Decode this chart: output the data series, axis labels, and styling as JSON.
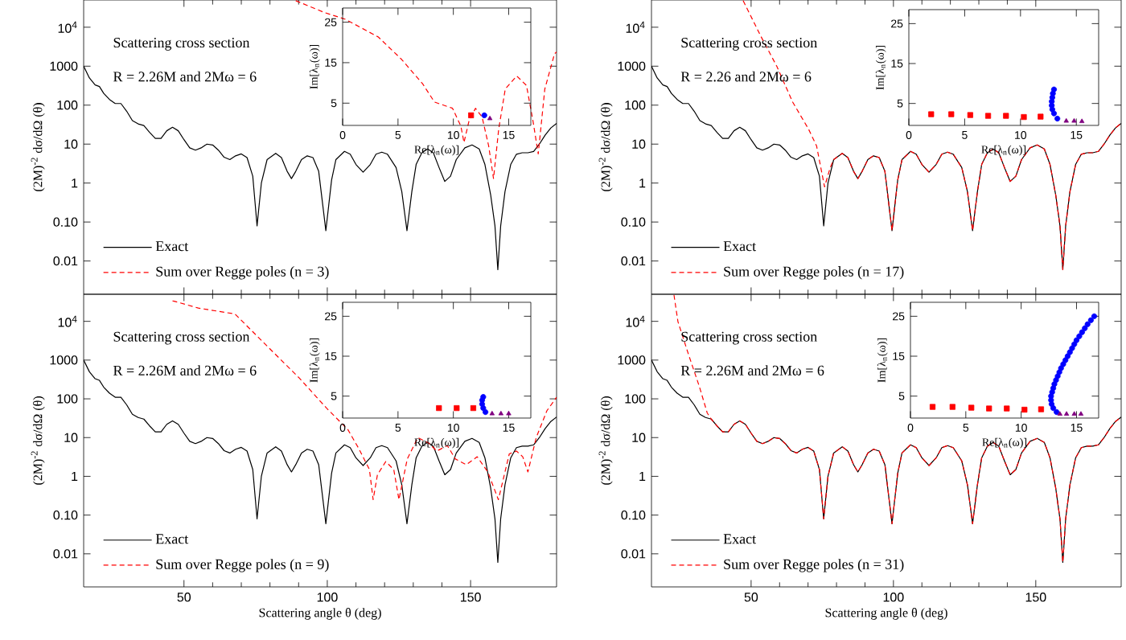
{
  "chart_data": [
    {
      "type": "line",
      "ylabel": "(2M)$^{-2}$ dσ/dΩ (θ)",
      "annotations": [
        "Scattering cross section",
        "R = 2.26M and 2Mω = 6"
      ],
      "xlim": [
        15,
        180
      ],
      "ylim": [
        0.0014,
        50000
      ],
      "xticks": [
        50,
        100,
        150
      ],
      "yticks": [
        {
          "value": 0.01,
          "label": "0.01"
        },
        {
          "value": 0.1,
          "label": "0.10"
        },
        1,
        10,
        100,
        1000,
        {
          "value": 10000,
          "label": "10$^{4}$"
        }
      ],
      "log": true,
      "legend": "bottom left",
      "tick_labels": "y",
      "series": [
        {
          "name": "Exact",
          "color": "#000000",
          "line_style": "solid",
          "x": [
            15,
            17,
            19,
            20.5,
            22,
            24,
            26,
            28,
            30,
            32,
            34,
            36,
            38,
            40,
            42,
            44,
            46,
            48,
            50,
            52,
            54,
            56,
            58,
            60,
            62,
            64,
            66,
            68,
            70,
            72,
            74,
            75.5,
            77,
            79,
            82,
            84,
            86,
            87.5,
            89,
            91,
            93,
            95,
            97,
            99.5,
            101.5,
            103,
            106,
            108,
            110,
            112.5,
            115,
            117,
            119,
            121,
            124,
            126,
            127.8,
            129.5,
            131,
            133,
            135,
            137,
            139,
            141,
            143,
            145,
            148,
            150.5,
            153,
            155,
            157,
            158.5,
            159.5,
            160.5,
            162,
            164,
            166,
            168,
            170,
            172,
            174,
            176,
            178,
            180
          ],
          "values": [
            1000,
            500,
            330,
            300,
            200,
            140,
            110,
            110,
            70,
            40,
            33,
            30,
            20,
            14,
            14,
            22,
            27,
            22,
            13,
            8,
            7,
            8,
            10,
            9.5,
            7,
            4.6,
            4,
            5,
            5.6,
            4.5,
            1.5,
            0.08,
            1,
            4,
            5.8,
            4.5,
            2,
            1.3,
            2,
            4,
            5,
            4.5,
            2,
            0.06,
            1.2,
            4,
            6.5,
            5.5,
            3,
            1.9,
            3,
            5.5,
            6.2,
            5.5,
            2.5,
            0.6,
            0.06,
            0.6,
            3,
            6,
            7.5,
            6,
            2.5,
            1.1,
            1.5,
            4,
            8,
            9.5,
            7.5,
            3,
            0.5,
            0.08,
            0.006,
            0.08,
            0.6,
            3,
            5.5,
            6,
            6,
            6.5,
            10,
            17,
            26,
            34
          ]
        },
        {
          "name": "Sum over Regge poles (n = 3)",
          "color": "#ff0000",
          "line_style": "dashed",
          "x": [
            89,
            98.9,
            106.3,
            117.8,
            125.9,
            133.3,
            137.4,
            143.7,
            146.6,
            147.7,
            149.4,
            151.7,
            154,
            156.3,
            158,
            159.8,
            162.1,
            166.1,
            169.5,
            171.8,
            173.6,
            175.9,
            179.3,
            180
          ],
          "values": [
            48000,
            24000,
            16000,
            5600,
            1500,
            350,
            120,
            83,
            29,
            11,
            38,
            83,
            50,
            9,
            1.3,
            24,
            260,
            560,
            320,
            38,
            5.6,
            260,
            2100,
            2300
          ]
        }
      ]
    },
    {
      "type": "scatter",
      "xlabel": "Re[λ$_{n}$(ω)]",
      "ylabel": "Im[λ$_{n}$(ω)]",
      "xlim": [
        0,
        17
      ],
      "ylim": [
        -0.5,
        28.5
      ],
      "xticks": [
        0,
        5,
        10,
        15
      ],
      "yticks": [
        5,
        15,
        25
      ],
      "series": [
        {
          "color": "#ff0000",
          "marker": "square",
          "x": [
            11.6
          ],
          "values": [
            2.0
          ]
        },
        {
          "color": "#0000ff",
          "marker": "circle",
          "x": [
            12.8
          ],
          "values": [
            2.0
          ]
        },
        {
          "color": "#800080",
          "marker": "triangle",
          "x": [
            13.3
          ],
          "values": [
            1.2
          ]
        }
      ]
    },
    {
      "type": "line",
      "ylabel": "(2M)$^{-2}$ dσ/dΩ (θ)",
      "annotations": [
        "Scattering cross section",
        "R = 2.26 and 2Mω = 6"
      ],
      "xlim": [
        15,
        180
      ],
      "ylim": [
        0.0014,
        50000
      ],
      "xticks": [
        50,
        100,
        150
      ],
      "yticks": [
        {
          "value": 0.01,
          "label": "0.01"
        },
        {
          "value": 0.1,
          "label": "0.10"
        },
        1,
        10,
        100,
        1000,
        {
          "value": 10000,
          "label": "10$^{4}$"
        }
      ],
      "log": true,
      "legend": "bottom left",
      "tick_labels": "y",
      "series": [
        {
          "name": "Exact",
          "color": "#000000",
          "line_style": "solid",
          "x": [
            15,
            17,
            19,
            20.5,
            22,
            24,
            26,
            28,
            30,
            32,
            34,
            36,
            38,
            40,
            42,
            44,
            46,
            48,
            50,
            52,
            54,
            56,
            58,
            60,
            62,
            64,
            66,
            68,
            70,
            72,
            74,
            75.5,
            77,
            79,
            82,
            84,
            86,
            87.5,
            89,
            91,
            93,
            95,
            97,
            99.5,
            101.5,
            103,
            106,
            108,
            110,
            112.5,
            115,
            117,
            119,
            121,
            124,
            126,
            127.8,
            129.5,
            131,
            133,
            135,
            137,
            139,
            141,
            143,
            145,
            148,
            150.5,
            153,
            155,
            157,
            158.5,
            159.5,
            160.5,
            162,
            164,
            166,
            168,
            170,
            172,
            174,
            176,
            178,
            180
          ],
          "values": [
            1000,
            500,
            330,
            300,
            200,
            140,
            110,
            110,
            70,
            40,
            33,
            30,
            20,
            14,
            14,
            22,
            27,
            22,
            13,
            8,
            7,
            8,
            10,
            9.5,
            7,
            4.6,
            4,
            5,
            5.6,
            4.5,
            1.5,
            0.08,
            1,
            4,
            5.8,
            4.5,
            2,
            1.3,
            2,
            4,
            5,
            4.5,
            2,
            0.06,
            1.2,
            4,
            6.5,
            5.5,
            3,
            1.9,
            3,
            5.5,
            6.2,
            5.5,
            2.5,
            0.6,
            0.06,
            0.6,
            3,
            6,
            7.5,
            6,
            2.5,
            1.1,
            1.5,
            4,
            8,
            9.5,
            7.5,
            3,
            0.5,
            0.08,
            0.006,
            0.08,
            0.6,
            3,
            5.5,
            6,
            6,
            6.5,
            10,
            17,
            26,
            34
          ]
        },
        {
          "name": "Sum over Regge poles (n = 17)",
          "color": "#ff0000",
          "line_style": "dashed",
          "x": [
            47.2,
            53.4,
            59,
            64.6,
            70.2,
            73,
            75.8,
            77.8,
            79,
            82,
            84,
            86,
            87.5,
            89,
            91,
            93,
            95,
            97,
            99.5,
            101.5,
            103,
            106,
            108,
            110,
            112.5,
            115,
            117,
            119,
            121,
            124,
            126,
            127.8,
            129.5,
            131,
            133,
            135,
            137,
            139,
            141,
            143,
            145,
            148,
            150.5,
            153,
            155,
            157,
            158.5,
            159.5,
            160.5,
            162,
            164,
            166,
            168,
            170,
            172,
            174,
            176,
            178,
            180
          ],
          "values": [
            48000,
            5900,
            1000,
            120,
            24,
            9,
            0.8,
            2.5,
            4,
            5.8,
            4.5,
            2,
            1.3,
            2,
            4,
            5,
            4.5,
            2,
            0.06,
            1.2,
            4,
            6.5,
            5.5,
            3,
            1.9,
            3,
            5.5,
            6.2,
            5.5,
            2.5,
            0.6,
            0.06,
            0.6,
            3,
            6,
            7.5,
            6,
            2.5,
            1.1,
            1.5,
            4,
            8,
            9.5,
            7.5,
            3,
            0.5,
            0.08,
            0.006,
            0.08,
            0.6,
            3,
            5.5,
            6,
            6,
            6.5,
            10,
            17,
            26,
            34
          ]
        }
      ]
    },
    {
      "type": "scatter",
      "xlabel": "Re[λ$_{n}$(ω)]",
      "ylabel": "Im[λ$_{n}$(ω)]",
      "xlim": [
        0,
        17
      ],
      "ylim": [
        -0.5,
        28.5
      ],
      "xticks": [
        0,
        5,
        10,
        15
      ],
      "yticks": [
        5,
        15,
        25
      ],
      "series": [
        {
          "color": "#ff0000",
          "marker": "square",
          "x": [
            2,
            3.8,
            5.5,
            7.1,
            8.7,
            10.3,
            11.8
          ],
          "values": [
            2.3,
            2.3,
            2.1,
            1.9,
            1.9,
            1.6,
            1.7
          ]
        },
        {
          "color": "#0000ff",
          "marker": "circle",
          "x": [
            13.3,
            13.0,
            12.85,
            12.8,
            12.8,
            12.85,
            12.9,
            13.0
          ],
          "values": [
            1.2,
            2.5,
            3.5,
            4.5,
            5.5,
            6.5,
            7.5,
            8.5
          ]
        },
        {
          "color": "#800080",
          "marker": "triangle",
          "x": [
            14.1,
            14.8,
            15.5
          ],
          "values": [
            0.6,
            0.6,
            0.5
          ]
        }
      ]
    },
    {
      "type": "line",
      "xlabel": "Scattering angle θ (deg)",
      "ylabel": "(2M)$^{-2}$ dσ/dΩ (θ)",
      "annotations": [
        "Scattering cross section",
        "R = 2.26M and 2Mω = 6"
      ],
      "xlim": [
        15,
        180
      ],
      "ylim": [
        0.0014,
        50000
      ],
      "xticks": [
        50,
        100,
        150
      ],
      "yticks": [
        {
          "value": 0.01,
          "label": "0.01"
        },
        {
          "value": 0.1,
          "label": "0.10"
        },
        1,
        10,
        100,
        1000,
        {
          "value": 10000,
          "label": "10$^{4}$"
        }
      ],
      "log": true,
      "legend": "bottom left",
      "series": [
        {
          "name": "Exact",
          "color": "#000000",
          "line_style": "solid",
          "x": [
            15,
            17,
            19,
            20.5,
            22,
            24,
            26,
            28,
            30,
            32,
            34,
            36,
            38,
            40,
            42,
            44,
            46,
            48,
            50,
            52,
            54,
            56,
            58,
            60,
            62,
            64,
            66,
            68,
            70,
            72,
            74,
            75.5,
            77,
            79,
            82,
            84,
            86,
            87.5,
            89,
            91,
            93,
            95,
            97,
            99.5,
            101.5,
            103,
            106,
            108,
            110,
            112.5,
            115,
            117,
            119,
            121,
            124,
            126,
            127.8,
            129.5,
            131,
            133,
            135,
            137,
            139,
            141,
            143,
            145,
            148,
            150.5,
            153,
            155,
            157,
            158.5,
            159.5,
            160.5,
            162,
            164,
            166,
            168,
            170,
            172,
            174,
            176,
            178,
            180
          ],
          "values": [
            1000,
            500,
            330,
            300,
            200,
            140,
            110,
            110,
            70,
            40,
            33,
            30,
            20,
            14,
            14,
            22,
            27,
            22,
            13,
            8,
            7,
            8,
            10,
            9.5,
            7,
            4.6,
            4,
            5,
            5.6,
            4.5,
            1.5,
            0.08,
            1,
            4,
            5.8,
            4.5,
            2,
            1.3,
            2,
            4,
            5,
            4.5,
            2,
            0.06,
            1.2,
            4,
            6.5,
            5.5,
            3,
            1.9,
            3,
            5.5,
            6.2,
            5.5,
            2.5,
            0.6,
            0.06,
            0.6,
            3,
            6,
            7.5,
            6,
            2.5,
            1.1,
            1.5,
            4,
            8,
            9.5,
            7.5,
            3,
            0.5,
            0.08,
            0.006,
            0.08,
            0.6,
            3,
            5.5,
            6,
            6,
            6.5,
            10,
            17,
            26,
            34
          ]
        },
        {
          "name": "Sum over Regge poles (n = 9)",
          "color": "#ff0000",
          "line_style": "dashed",
          "x": [
            46,
            55,
            67.8,
            79,
            90.3,
            99.7,
            107.2,
            111,
            114.7,
            116,
            117.5,
            120.4,
            123.2,
            125,
            127.9,
            131.6,
            135.4,
            138.2,
            141.9,
            144.7,
            148.5,
            152.3,
            156,
            159.7,
            163.5,
            166,
            168.2,
            170,
            172.9,
            176.6,
            180
          ],
          "values": [
            34000,
            22000,
            15500,
            2300,
            340,
            58,
            16,
            5.2,
            1.5,
            0.25,
            1.1,
            2.4,
            1.5,
            0.25,
            2.8,
            10,
            7.2,
            4.5,
            6.2,
            2.8,
            2,
            3.2,
            1.3,
            0.25,
            3.8,
            4.5,
            3.2,
            1.3,
            10,
            49,
            110
          ]
        }
      ]
    },
    {
      "type": "scatter",
      "xlabel": "Re[λ$_{n}$(ω)]",
      "ylabel": "Im[λ$_{n}$(ω)]",
      "xlim": [
        0,
        17
      ],
      "ylim": [
        -0.5,
        28.5
      ],
      "xticks": [
        0,
        5,
        10,
        15
      ],
      "yticks": [
        5,
        15,
        25
      ],
      "series": [
        {
          "color": "#ff0000",
          "marker": "square",
          "x": [
            8.7,
            10.3,
            11.8
          ],
          "values": [
            2,
            2,
            2
          ]
        },
        {
          "color": "#0000ff",
          "marker": "circle",
          "x": [
            12.9,
            12.7,
            12.6,
            12.6,
            12.7
          ],
          "values": [
            1,
            2,
            3,
            4,
            4.8
          ]
        },
        {
          "color": "#800080",
          "marker": "triangle",
          "x": [
            13.5,
            14.3,
            15
          ],
          "values": [
            0.6,
            0.6,
            0.6
          ]
        }
      ]
    },
    {
      "type": "line",
      "xlabel": "Scattering angle θ (deg)",
      "ylabel": "(2M)$^{-2}$ dσ/dΩ (θ)",
      "annotations": [
        "Scattering cross section",
        "R = 2.26M and 2Mω = 6"
      ],
      "xlim": [
        15,
        180
      ],
      "ylim": [
        0.0014,
        50000
      ],
      "xticks": [
        50,
        100,
        150
      ],
      "yticks": [
        {
          "value": 0.01,
          "label": "0.01"
        },
        {
          "value": 0.1,
          "label": "0.10"
        },
        1,
        10,
        100,
        1000,
        {
          "value": 10000,
          "label": "10$^{4}$"
        }
      ],
      "log": true,
      "legend": "bottom left",
      "series": [
        {
          "name": "Exact",
          "color": "#000000",
          "line_style": "solid",
          "x": [
            15,
            17,
            19,
            20.5,
            22,
            24,
            26,
            28,
            30,
            32,
            34,
            36,
            38,
            40,
            42,
            44,
            46,
            48,
            50,
            52,
            54,
            56,
            58,
            60,
            62,
            64,
            66,
            68,
            70,
            72,
            74,
            75.5,
            77,
            79,
            82,
            84,
            86,
            87.5,
            89,
            91,
            93,
            95,
            97,
            99.5,
            101.5,
            103,
            106,
            108,
            110,
            112.5,
            115,
            117,
            119,
            121,
            124,
            126,
            127.8,
            129.5,
            131,
            133,
            135,
            137,
            139,
            141,
            143,
            145,
            148,
            150.5,
            153,
            155,
            157,
            158.5,
            159.5,
            160.5,
            162,
            164,
            166,
            168,
            170,
            172,
            174,
            176,
            178,
            180
          ],
          "values": [
            1000,
            500,
            330,
            300,
            200,
            140,
            110,
            110,
            70,
            40,
            33,
            30,
            20,
            14,
            14,
            22,
            27,
            22,
            13,
            8,
            7,
            8,
            10,
            9.5,
            7,
            4.6,
            4,
            5,
            5.6,
            4.5,
            1.5,
            0.08,
            1,
            4,
            5.8,
            4.5,
            2,
            1.3,
            2,
            4,
            5,
            4.5,
            2,
            0.06,
            1.2,
            4,
            6.5,
            5.5,
            3,
            1.9,
            3,
            5.5,
            6.2,
            5.5,
            2.5,
            0.6,
            0.06,
            0.6,
            3,
            6,
            7.5,
            6,
            2.5,
            1.1,
            1.5,
            4,
            8,
            9.5,
            7.5,
            3,
            0.5,
            0.08,
            0.006,
            0.08,
            0.6,
            3,
            5.5,
            6,
            6,
            6.5,
            10,
            17,
            26,
            34
          ]
        },
        {
          "name": "Sum over Regge poles (n = 31)",
          "color": "#ff0000",
          "line_style": "dashed",
          "x": [
            22.9,
            24.3,
            28,
            31.8,
            34.6,
            36,
            38,
            40,
            42,
            44,
            46,
            48,
            50,
            52,
            54,
            56,
            58,
            60,
            62,
            64,
            66,
            68,
            70,
            72,
            74,
            75.5,
            77,
            79,
            82,
            84,
            86,
            87.5,
            89,
            91,
            93,
            95,
            97,
            99.5,
            101.5,
            103,
            106,
            108,
            110,
            112.5,
            115,
            117,
            119,
            121,
            124,
            126,
            127.8,
            129.5,
            131,
            133,
            135,
            137,
            139,
            141,
            143,
            145,
            148,
            150.5,
            153,
            155,
            157,
            158.5,
            159.5,
            160.5,
            162,
            164,
            166,
            168,
            170,
            172,
            174,
            176,
            178,
            180
          ],
          "values": [
            48000,
            9800,
            1400,
            210,
            43,
            30,
            20,
            14,
            14,
            22,
            27,
            22,
            13,
            8,
            7,
            8,
            10,
            9.5,
            7,
            4.6,
            4,
            5,
            5.6,
            4.5,
            1.5,
            0.08,
            1,
            4,
            5.8,
            4.5,
            2,
            1.3,
            2,
            4,
            5,
            4.5,
            2,
            0.06,
            1.2,
            4,
            6.5,
            5.5,
            3,
            1.9,
            3,
            5.5,
            6.2,
            5.5,
            2.5,
            0.6,
            0.06,
            0.6,
            3,
            6,
            7.5,
            6,
            2.5,
            1.1,
            1.5,
            4,
            8,
            9.5,
            7.5,
            3,
            0.5,
            0.08,
            0.006,
            0.08,
            0.6,
            3,
            5.5,
            6,
            6,
            6.5,
            10,
            17,
            26,
            34
          ]
        }
      ]
    },
    {
      "type": "scatter",
      "xlabel": "Re[λ$_{n}$(ω)]",
      "ylabel": "Im[λ$_{n}$(ω)]",
      "xlim": [
        0,
        17
      ],
      "ylim": [
        -0.5,
        28.5
      ],
      "xticks": [
        0,
        5,
        10,
        15
      ],
      "yticks": [
        5,
        15,
        25
      ],
      "series": [
        {
          "color": "#ff0000",
          "marker": "square",
          "x": [
            2,
            3.8,
            5.5,
            7.1,
            8.7,
            10.3,
            11.8
          ],
          "values": [
            2.3,
            2.3,
            2.1,
            1.9,
            1.9,
            1.6,
            1.7
          ]
        },
        {
          "color": "#0000ff",
          "marker": "circle",
          "x": [
            13.2,
            12.9,
            12.75,
            12.7,
            12.7,
            12.8,
            12.9,
            13.0,
            13.15,
            13.3,
            13.45,
            13.6,
            13.8,
            14.0,
            14.2,
            14.4,
            14.6,
            14.8,
            15.0,
            15.25,
            15.5,
            15.75,
            16.0,
            16.3,
            16.6
          ],
          "values": [
            1,
            2,
            3,
            4,
            5,
            6,
            7,
            8,
            9,
            10,
            11,
            12,
            13,
            14,
            15,
            16,
            17,
            18,
            19,
            20,
            21,
            22,
            23,
            24,
            25
          ]
        },
        {
          "color": "#800080",
          "marker": "triangle",
          "x": [
            13.5,
            14.1,
            14.8,
            15.4
          ],
          "values": [
            0.5,
            0.5,
            0.5,
            0.5
          ]
        }
      ]
    }
  ]
}
